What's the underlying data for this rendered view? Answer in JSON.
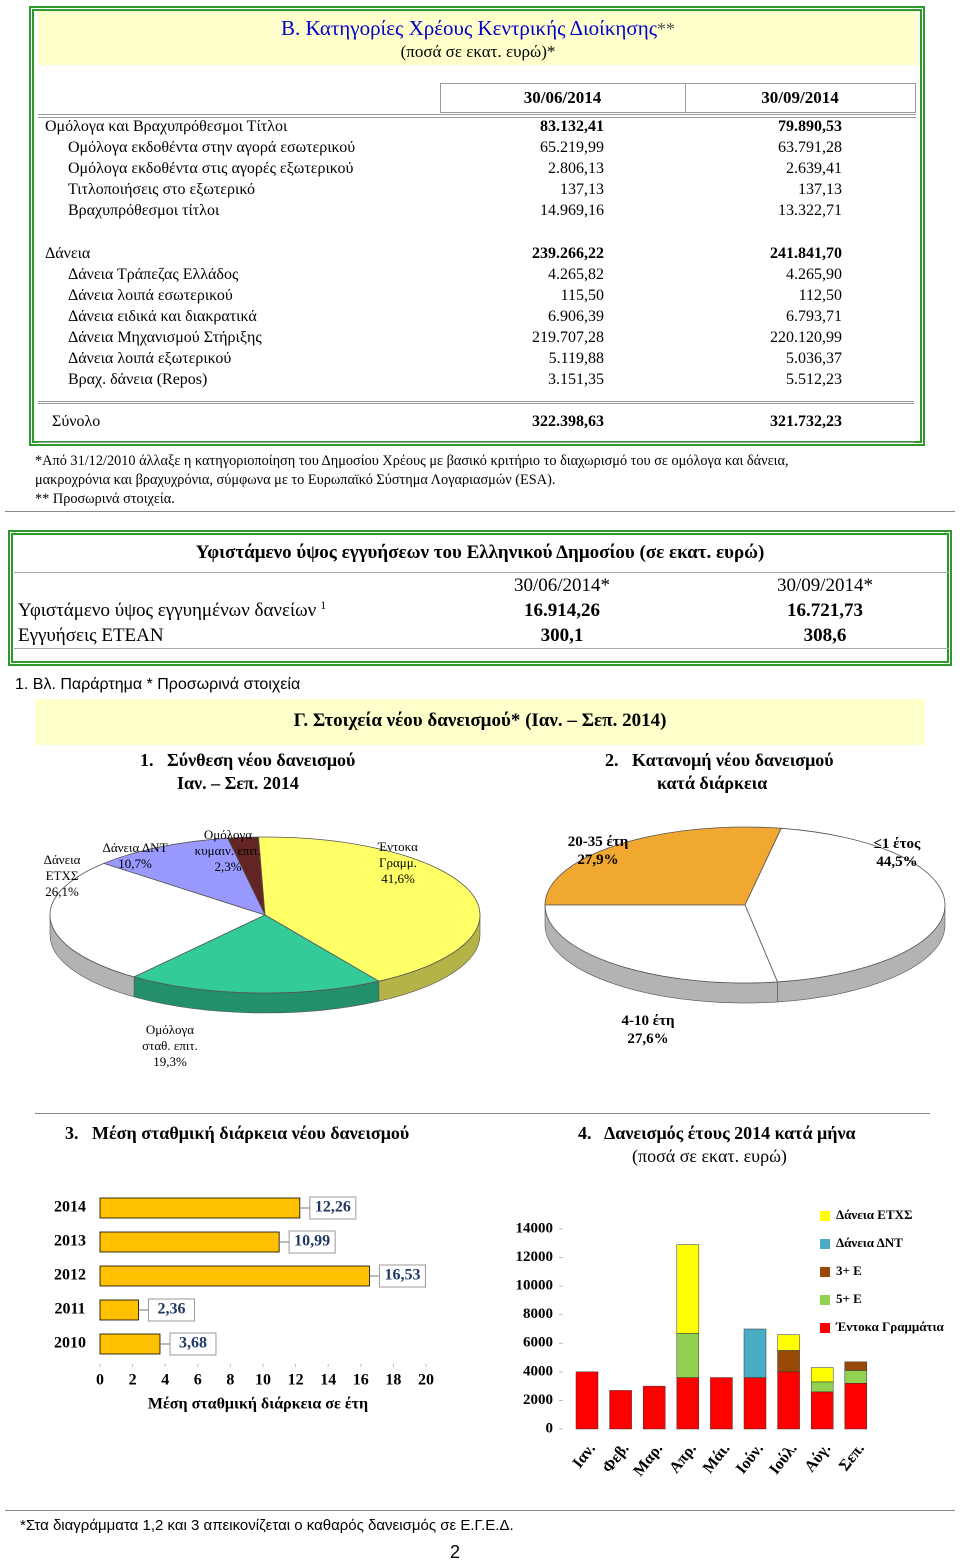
{
  "section_b": {
    "title": "Β. Κατηγορίες Χρέους Κεντρικής Διοίκησης",
    "title_mark": "**",
    "subtitle": "(ποσά σε εκατ. ευρώ)*",
    "table": {
      "columns": [
        "30/06/2014",
        "30/09/2014"
      ],
      "groups": [
        {
          "head": [
            "Ομόλογα και Βραχυπρόθεσμοι Τίτλοι",
            "83.132,41",
            "79.890,53"
          ],
          "rows": [
            [
              "Ομόλογα εκδοθέντα στην αγορά εσωτερικού",
              "65.219,99",
              "63.791,28"
            ],
            [
              "Ομόλογα εκδοθέντα στις αγορές εξωτερικού",
              "2.806,13",
              "2.639,41"
            ],
            [
              "Τιτλοποιήσεις στο εξωτερικό",
              "137,13",
              "137,13"
            ],
            [
              "Βραχυπρόθεσμοι τίτλοι",
              "14.969,16",
              "13.322,71"
            ]
          ]
        },
        {
          "head": [
            "Δάνεια",
            "239.266,22",
            "241.841,70"
          ],
          "rows": [
            [
              "Δάνεια Τράπεζας Ελλάδος",
              "4.265,82",
              "4.265,90"
            ],
            [
              "Δάνεια λοιπά εσωτερικού",
              "115,50",
              "112,50"
            ],
            [
              "Δάνεια ειδικά και διακρατικά",
              "6.906,39",
              "6.793,71"
            ],
            [
              "Δάνεια Μηχανισμού Στήριξης",
              "219.707,28",
              "220.120,99"
            ],
            [
              "Δάνεια λοιπά εξωτερικού",
              "5.119,88",
              "5.036,37"
            ],
            [
              "Βραχ. δάνεια (Repos)",
              "3.151,35",
              "5.512,23"
            ]
          ]
        }
      ],
      "total": [
        "Σύνολο",
        "322.398,63",
        "321.732,23"
      ]
    },
    "notes": [
      "*Από 31/12/2010 άλλαξε η κατηγοριοποίηση του Δημοσίου Χρέους με βασικό κριτήριο το διαχωρισμό του σε ομόλογα και δάνεια, μακροχρόνια και βραχυχρόνια, σύμφωνα με το Ευρωπαϊκό Σύστημα Λογαριασμών (ESA).",
      "** Προσωρινά στοιχεία."
    ]
  },
  "guarantees": {
    "title": "Υφιστάμενο ύψος εγγυήσεων του Ελληνικού Δημοσίου (σε εκατ. ευρώ)",
    "columns": [
      "30/06/2014*",
      "30/09/2014*"
    ],
    "rows": [
      {
        "label": "Υφιστάμενο ύψος εγγυημένων δανείων",
        "note": "1",
        "values": [
          "16.914,26",
          "16.721,73"
        ]
      },
      {
        "label": "Εγγυήσεις ΕΤΕΑΝ",
        "values": [
          "300,1",
          "308,6"
        ]
      }
    ],
    "footnote": "1. Βλ. Παράρτημα * Προσωρινά στοιχεία"
  },
  "section_c": {
    "title": "Γ. Στοιχεία νέου δανεισμού* (Ιαν. – Σεπ. 2014)"
  },
  "chart_data": [
    {
      "type": "pie",
      "title": "1.   Σύνθεση νέου δανεισμού",
      "subtitle": "Ιαν. – Σεπ. 2014",
      "categories": [
        "Ομόλογα κυμαιν. επιτ.",
        "Έντοκα Γραμμ.",
        "Ομόλογα σταθ. επιτ.",
        "Δάνεια ΕΤΧΣ",
        "Δάνεια ΔΝΤ"
      ],
      "values": [
        2.3,
        41.6,
        19.3,
        26.1,
        10.7
      ],
      "value_labels": [
        "2,3%",
        "41,6%",
        "19,3%",
        "26,1%",
        "10,7%"
      ],
      "colors": [
        "#632523",
        "#ffff66",
        "#33cc99",
        "#ffffff",
        "#9999ff"
      ]
    },
    {
      "type": "pie",
      "title": "2.   Κατανομή νέου δανεισμού",
      "subtitle": "κατά διάρκεια",
      "categories": [
        "20-35 έτη",
        "≤1 έτος",
        "4-10 έτη"
      ],
      "values": [
        27.9,
        44.5,
        27.6
      ],
      "value_labels": [
        "27,9%",
        "44,5%",
        "27,6%"
      ],
      "colors": [
        "#f0a830",
        "#ffffff",
        "#ffffff"
      ]
    },
    {
      "type": "bar",
      "orientation": "horizontal",
      "title": "3.   Μέση σταθμική διάρκεια νέου δανεισμού",
      "categories": [
        "2014",
        "2013",
        "2012",
        "2011",
        "2010"
      ],
      "values": [
        12.26,
        10.99,
        16.53,
        2.36,
        3.68
      ],
      "value_labels": [
        "12,26",
        "10,99",
        "16,53",
        "2,36",
        "3,68"
      ],
      "color": "#ffc000",
      "xlim": [
        0,
        20
      ],
      "xticks": [
        0,
        2,
        4,
        6,
        8,
        10,
        12,
        14,
        16,
        18,
        20
      ],
      "xlabel": "Μέση σταθμική διάρκεια σε έτη"
    },
    {
      "type": "stacked_bar",
      "title": "4.   Δανεισμός έτους 2014 κατά μήνα",
      "subtitle": "(ποσά σε εκατ. ευρώ)",
      "categories": [
        "Ιαν.",
        "Φεβ.",
        "Μαρ.",
        "Απρ.",
        "Μάι.",
        "Ιούν.",
        "Ιούλ.",
        "Αύγ.",
        "Σεπ."
      ],
      "series": [
        {
          "name": "Δάνεια ΕΤΧΣ",
          "color": "#ffff00",
          "values": [
            null,
            null,
            null,
            6200,
            null,
            null,
            1100,
            1000,
            null
          ]
        },
        {
          "name": "Δάνεια ΔΝΤ",
          "color": "#4bacc6",
          "values": [
            null,
            null,
            null,
            null,
            null,
            3400,
            null,
            null,
            null
          ]
        },
        {
          "name": "3+ Ε",
          "color": "#984807",
          "values": [
            null,
            null,
            null,
            null,
            null,
            null,
            1500,
            null,
            600
          ]
        },
        {
          "name": "5+ Ε",
          "color": "#92d050",
          "values": [
            null,
            null,
            null,
            3100,
            null,
            null,
            null,
            700,
            900
          ]
        },
        {
          "name": "Έντοκα Γραμμάτια",
          "color": "#ff0000",
          "values": [
            4000,
            2700,
            3000,
            3600,
            3600,
            3600,
            4000,
            2600,
            3200
          ]
        }
      ],
      "ylim": [
        0,
        14000
      ],
      "yticks": [
        0,
        2000,
        4000,
        6000,
        8000,
        10000,
        12000,
        14000
      ],
      "legend": "right"
    }
  ],
  "footer": {
    "note": "*Στα διαγράμματα 1,2 και 3 απεικονίζεται ο καθαρός δανεισμός σε Ε.Γ.Ε.Δ.",
    "page": "2"
  }
}
